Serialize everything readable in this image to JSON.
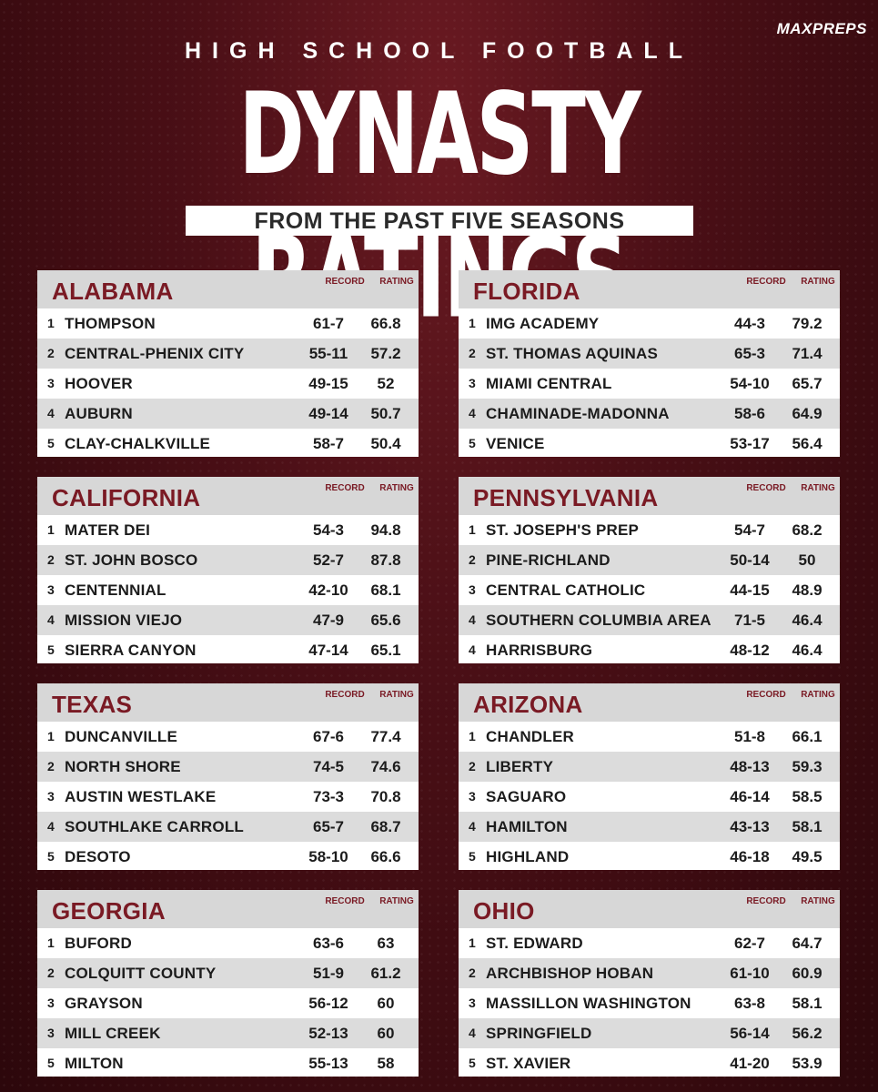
{
  "header": {
    "logo": "MAXPREPS",
    "kicker": "HIGH SCHOOL FOOTBALL",
    "title": "DYNASTY RATINGS",
    "subtitle": "FROM THE PAST FIVE SEASONS",
    "col_record": "RECORD",
    "col_rating": "RATING"
  },
  "colors": {
    "accent": "#7a1a24",
    "background": "#4a0f16"
  },
  "panels": [
    {
      "state": "ALABAMA",
      "rows": [
        {
          "rank": "1",
          "name": "THOMPSON",
          "record": "61-7",
          "rating": "66.8"
        },
        {
          "rank": "2",
          "name": "CENTRAL-PHENIX CITY",
          "record": "55-11",
          "rating": "57.2"
        },
        {
          "rank": "3",
          "name": "HOOVER",
          "record": "49-15",
          "rating": "52"
        },
        {
          "rank": "4",
          "name": "AUBURN",
          "record": "49-14",
          "rating": "50.7"
        },
        {
          "rank": "5",
          "name": "CLAY-CHALKVILLE",
          "record": "58-7",
          "rating": "50.4"
        }
      ]
    },
    {
      "state": "FLORIDA",
      "rows": [
        {
          "rank": "1",
          "name": "IMG ACADEMY",
          "record": "44-3",
          "rating": "79.2"
        },
        {
          "rank": "2",
          "name": "ST. THOMAS AQUINAS",
          "record": "65-3",
          "rating": "71.4"
        },
        {
          "rank": "3",
          "name": "MIAMI CENTRAL",
          "record": "54-10",
          "rating": "65.7"
        },
        {
          "rank": "4",
          "name": "CHAMINADE-MADONNA",
          "record": "58-6",
          "rating": "64.9"
        },
        {
          "rank": "5",
          "name": "VENICE",
          "record": "53-17",
          "rating": "56.4"
        }
      ]
    },
    {
      "state": "CALIFORNIA",
      "rows": [
        {
          "rank": "1",
          "name": "MATER DEI",
          "record": "54-3",
          "rating": "94.8"
        },
        {
          "rank": "2",
          "name": "ST. JOHN BOSCO",
          "record": "52-7",
          "rating": "87.8"
        },
        {
          "rank": "3",
          "name": "CENTENNIAL",
          "record": "42-10",
          "rating": "68.1"
        },
        {
          "rank": "4",
          "name": "MISSION VIEJO",
          "record": "47-9",
          "rating": "65.6"
        },
        {
          "rank": "5",
          "name": "SIERRA CANYON",
          "record": "47-14",
          "rating": "65.1"
        }
      ]
    },
    {
      "state": "PENNSYLVANIA",
      "rows": [
        {
          "rank": "1",
          "name": "ST. JOSEPH'S PREP",
          "record": "54-7",
          "rating": "68.2"
        },
        {
          "rank": "2",
          "name": "PINE-RICHLAND",
          "record": "50-14",
          "rating": "50"
        },
        {
          "rank": "3",
          "name": "CENTRAL CATHOLIC",
          "record": "44-15",
          "rating": "48.9"
        },
        {
          "rank": "4",
          "name": "SOUTHERN COLUMBIA AREA",
          "record": "71-5",
          "rating": "46.4"
        },
        {
          "rank": "4",
          "name": "HARRISBURG",
          "record": "48-12",
          "rating": "46.4"
        }
      ]
    },
    {
      "state": "TEXAS",
      "rows": [
        {
          "rank": "1",
          "name": "DUNCANVILLE",
          "record": "67-6",
          "rating": "77.4"
        },
        {
          "rank": "2",
          "name": "NORTH SHORE",
          "record": "74-5",
          "rating": "74.6"
        },
        {
          "rank": "3",
          "name": "AUSTIN WESTLAKE",
          "record": "73-3",
          "rating": "70.8"
        },
        {
          "rank": "4",
          "name": "SOUTHLAKE CARROLL",
          "record": "65-7",
          "rating": "68.7"
        },
        {
          "rank": "5",
          "name": "DESOTO",
          "record": "58-10",
          "rating": "66.6"
        }
      ]
    },
    {
      "state": "ARIZONA",
      "rows": [
        {
          "rank": "1",
          "name": "CHANDLER",
          "record": "51-8",
          "rating": "66.1"
        },
        {
          "rank": "2",
          "name": "LIBERTY",
          "record": "48-13",
          "rating": "59.3"
        },
        {
          "rank": "3",
          "name": "SAGUARO",
          "record": "46-14",
          "rating": "58.5"
        },
        {
          "rank": "4",
          "name": "HAMILTON",
          "record": "43-13",
          "rating": "58.1"
        },
        {
          "rank": "5",
          "name": "HIGHLAND",
          "record": "46-18",
          "rating": "49.5"
        }
      ]
    },
    {
      "state": "GEORGIA",
      "rows": [
        {
          "rank": "1",
          "name": "BUFORD",
          "record": "63-6",
          "rating": "63"
        },
        {
          "rank": "2",
          "name": "COLQUITT COUNTY",
          "record": "51-9",
          "rating": "61.2"
        },
        {
          "rank": "3",
          "name": "GRAYSON",
          "record": "56-12",
          "rating": "60"
        },
        {
          "rank": "3",
          "name": "MILL CREEK",
          "record": "52-13",
          "rating": "60"
        },
        {
          "rank": "5",
          "name": "MILTON",
          "record": "55-13",
          "rating": "58"
        }
      ]
    },
    {
      "state": "OHIO",
      "rows": [
        {
          "rank": "1",
          "name": "ST. EDWARD",
          "record": "62-7",
          "rating": "64.7"
        },
        {
          "rank": "2",
          "name": "ARCHBISHOP HOBAN",
          "record": "61-10",
          "rating": "60.9"
        },
        {
          "rank": "3",
          "name": "MASSILLON WASHINGTON",
          "record": "63-8",
          "rating": "58.1"
        },
        {
          "rank": "4",
          "name": "SPRINGFIELD",
          "record": "56-14",
          "rating": "56.2"
        },
        {
          "rank": "5",
          "name": "ST. XAVIER",
          "record": "41-20",
          "rating": "53.9"
        }
      ]
    }
  ]
}
